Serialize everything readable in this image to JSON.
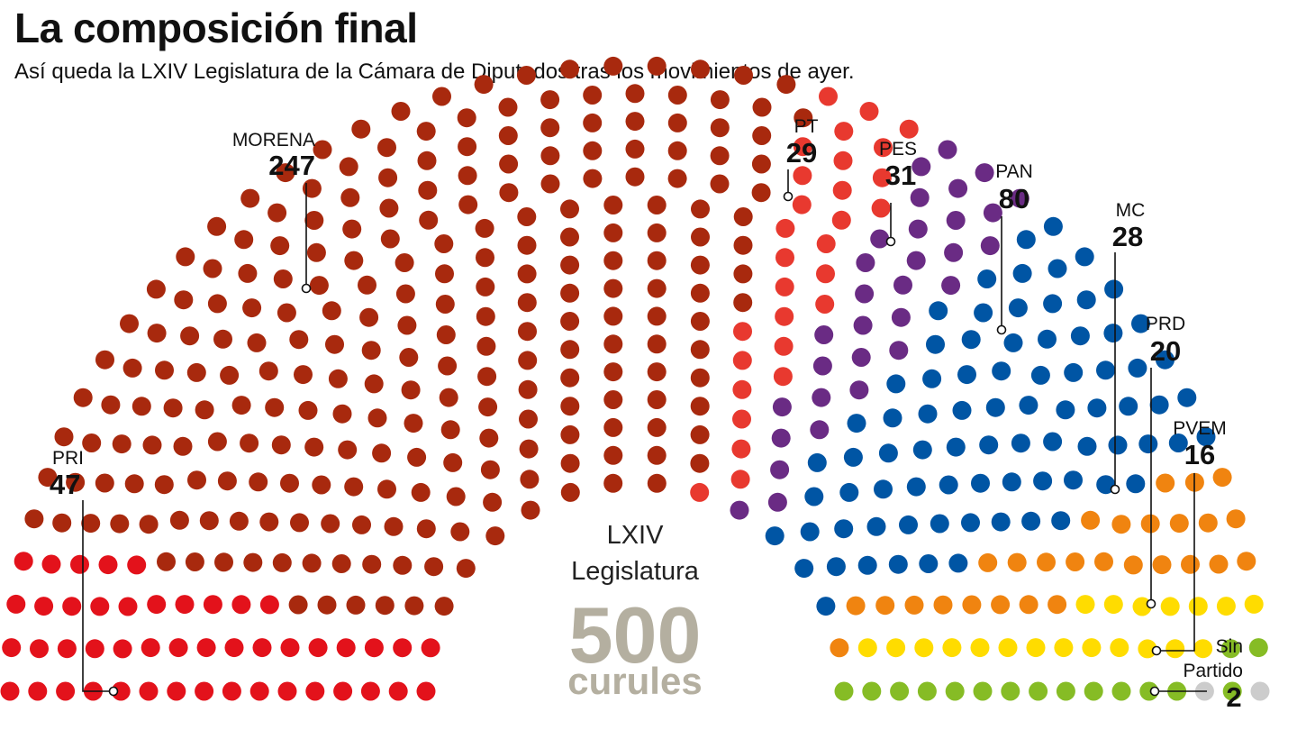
{
  "title": "La composición final",
  "subtitle": "Así queda la LXIV Legislatura de la Cámara de Diputados tras los movimientos de ayer.",
  "center": {
    "line1": "LXIV",
    "line2": "Legislatura",
    "total": "500",
    "unit": "curules"
  },
  "chart_data": {
    "type": "parliament",
    "total": 500,
    "title": "La composición final",
    "parties": [
      {
        "name": "PRI",
        "seats": 47,
        "color": "#e3121b"
      },
      {
        "name": "MORENA",
        "seats": 247,
        "color": "#a8290e"
      },
      {
        "name": "PT",
        "seats": 29,
        "color": "#e8392f"
      },
      {
        "name": "PES",
        "seats": 31,
        "color": "#6a2b84"
      },
      {
        "name": "PAN",
        "seats": 80,
        "color": "#0055a4"
      },
      {
        "name": "MC",
        "seats": 28,
        "color": "#f08410"
      },
      {
        "name": "PRD",
        "seats": 20,
        "color": "#ffdc00"
      },
      {
        "name": "PVEM",
        "seats": 16,
        "color": "#86bc25"
      },
      {
        "name": "Sin Partido",
        "seats": 2,
        "color": "#cccccc"
      }
    ]
  }
}
